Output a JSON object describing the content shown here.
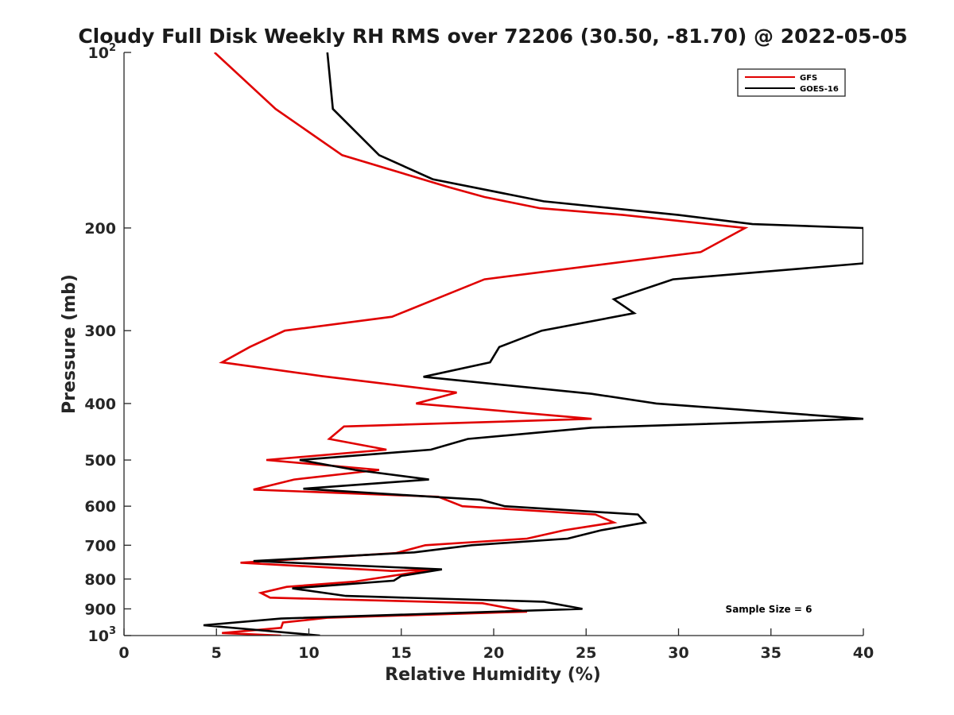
{
  "chart_data": {
    "type": "line",
    "title": "Cloudy Full Disk Weekly RH RMS over 72206 (30.50, -81.70) @ 2022-05-05",
    "xlabel": "Relative Humidity (%)",
    "ylabel": "Pressure (mb)",
    "xlim": [
      0,
      40
    ],
    "ylim": [
      100,
      1000
    ],
    "yscale": "log",
    "y_reversed": true,
    "grid": false,
    "legend_position": "top-right",
    "x_ticks": [
      0,
      5,
      10,
      15,
      20,
      25,
      30,
      35,
      40
    ],
    "x_tick_labels": [
      "0",
      "5",
      "10",
      "15",
      "20",
      "25",
      "30",
      "35",
      "40"
    ],
    "y_ticks": [
      100,
      200,
      300,
      400,
      500,
      600,
      700,
      800,
      900,
      1000
    ],
    "y_tick_labels": [
      {
        "base": "10",
        "exp": "2"
      },
      {
        "base": "200",
        "exp": ""
      },
      {
        "base": "300",
        "exp": ""
      },
      {
        "base": "400",
        "exp": ""
      },
      {
        "base": "500",
        "exp": ""
      },
      {
        "base": "600",
        "exp": ""
      },
      {
        "base": "700",
        "exp": ""
      },
      {
        "base": "800",
        "exp": ""
      },
      {
        "base": "900",
        "exp": ""
      },
      {
        "base": "10",
        "exp": "3"
      }
    ],
    "annotation": "Sample Size = 6",
    "series": [
      {
        "name": "GFS",
        "color": "#e00000",
        "points": [
          [
            4.9,
            100
          ],
          [
            8.2,
            125
          ],
          [
            11.8,
            150
          ],
          [
            17.5,
            170
          ],
          [
            19.5,
            177
          ],
          [
            22.5,
            185
          ],
          [
            27.0,
            190
          ],
          [
            33.6,
            200
          ],
          [
            31.2,
            220
          ],
          [
            19.5,
            245
          ],
          [
            14.5,
            284
          ],
          [
            8.7,
            300
          ],
          [
            6.8,
            320
          ],
          [
            5.3,
            340
          ],
          [
            10.7,
            359
          ],
          [
            18.0,
            383
          ],
          [
            15.8,
            400
          ],
          [
            25.3,
            425
          ],
          [
            11.9,
            438
          ],
          [
            11.1,
            460
          ],
          [
            14.2,
            480
          ],
          [
            7.7,
            500
          ],
          [
            13.8,
            520
          ],
          [
            9.2,
            540
          ],
          [
            7.0,
            562
          ],
          [
            17.0,
            578
          ],
          [
            18.3,
            600
          ],
          [
            25.5,
            620
          ],
          [
            26.5,
            640
          ],
          [
            23.8,
            660
          ],
          [
            21.8,
            682
          ],
          [
            16.3,
            700
          ],
          [
            14.7,
            722
          ],
          [
            6.3,
            750
          ],
          [
            14.5,
            775
          ],
          [
            16.8,
            770
          ],
          [
            12.5,
            808
          ],
          [
            8.8,
            825
          ],
          [
            7.4,
            845
          ],
          [
            7.9,
            861
          ],
          [
            19.4,
            880
          ],
          [
            21.8,
            910
          ],
          [
            11.0,
            932
          ],
          [
            8.6,
            950
          ],
          [
            8.5,
            970
          ],
          [
            5.3,
            990
          ],
          [
            8.5,
            1000
          ]
        ]
      },
      {
        "name": "GOES-16",
        "color": "#000000",
        "points": [
          [
            11.0,
            100
          ],
          [
            11.3,
            125
          ],
          [
            13.8,
            150
          ],
          [
            16.7,
            165
          ],
          [
            22.7,
            180
          ],
          [
            30.0,
            190
          ],
          [
            34.0,
            197
          ],
          [
            40.0,
            200
          ],
          [
            40.0,
            230
          ],
          [
            29.7,
            245
          ],
          [
            26.5,
            265
          ],
          [
            27.6,
            280
          ],
          [
            22.6,
            300
          ],
          [
            20.3,
            320
          ],
          [
            19.8,
            340
          ],
          [
            16.2,
            360
          ],
          [
            25.3,
            385
          ],
          [
            28.8,
            400
          ],
          [
            40.0,
            425
          ],
          [
            25.3,
            440
          ],
          [
            18.6,
            460
          ],
          [
            16.6,
            480
          ],
          [
            9.5,
            500
          ],
          [
            12.5,
            520
          ],
          [
            16.5,
            540
          ],
          [
            9.7,
            560
          ],
          [
            19.3,
            585
          ],
          [
            20.6,
            600
          ],
          [
            27.8,
            620
          ],
          [
            28.2,
            640
          ],
          [
            25.8,
            660
          ],
          [
            24.0,
            682
          ],
          [
            18.8,
            700
          ],
          [
            15.7,
            720
          ],
          [
            7.0,
            745
          ],
          [
            17.2,
            770
          ],
          [
            15.0,
            790
          ],
          [
            14.6,
            805
          ],
          [
            9.1,
            830
          ],
          [
            12.0,
            855
          ],
          [
            22.7,
            875
          ],
          [
            24.8,
            900
          ],
          [
            8.5,
            935
          ],
          [
            4.3,
            960
          ],
          [
            10.6,
            1000
          ]
        ]
      }
    ]
  }
}
